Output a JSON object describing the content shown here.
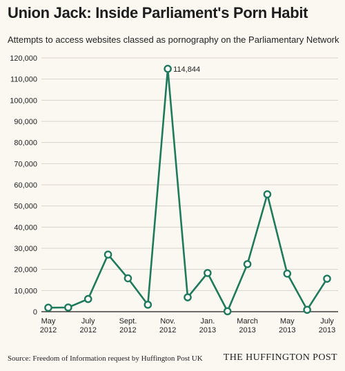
{
  "header": {
    "title": "Union Jack: Inside Parliament's Porn Habit",
    "subtitle": "Attempts to access websites classed as pornography on the Parliamentary Network"
  },
  "footer": {
    "source": "Source: Freedom of Information request by Huffington Post UK",
    "brand": "THE HUFFINGTON POST"
  },
  "colors": {
    "line": "#1e7a5c",
    "marker_fill": "#ffffff",
    "grid": "#d9d5cc",
    "axis": "#1a1a1a",
    "background": "#fbf8f2"
  },
  "chart_data": {
    "type": "line",
    "title": "Union Jack: Inside Parliament's Porn Habit",
    "subtitle": "Attempts to access websites classed as pornography on the Parliamentary Network",
    "xlabel": "",
    "ylabel": "",
    "ylim": [
      0,
      120000
    ],
    "y_ticks": [
      0,
      10000,
      20000,
      30000,
      40000,
      50000,
      60000,
      70000,
      80000,
      90000,
      100000,
      110000,
      120000
    ],
    "grid": true,
    "legend": "none",
    "categories": [
      "May 2012",
      "Jun 2012",
      "Jul 2012",
      "Aug 2012",
      "Sep 2012",
      "Oct 2012",
      "Nov 2012",
      "Dec 2012",
      "Jan 2013",
      "Feb 2013",
      "Mar 2013",
      "Apr 2013",
      "May 2013",
      "Jun 2013",
      "Jul 2013"
    ],
    "x_tick_labels": [
      {
        "index": 0,
        "lines": [
          "May",
          "2012"
        ]
      },
      {
        "index": 2,
        "lines": [
          "July",
          "2012"
        ]
      },
      {
        "index": 4,
        "lines": [
          "Sept.",
          "2012"
        ]
      },
      {
        "index": 6,
        "lines": [
          "Nov.",
          "2012"
        ]
      },
      {
        "index": 8,
        "lines": [
          "Jan.",
          "2013"
        ]
      },
      {
        "index": 10,
        "lines": [
          "March",
          "2013"
        ]
      },
      {
        "index": 12,
        "lines": [
          "May",
          "2013"
        ]
      },
      {
        "index": 14,
        "lines": [
          "July",
          "2013"
        ]
      }
    ],
    "series": [
      {
        "values": [
          1900,
          2000,
          6000,
          27000,
          15800,
          3300,
          114844,
          6800,
          18300,
          200,
          22500,
          55500,
          18000,
          900,
          15600
        ]
      }
    ],
    "annotations": [
      {
        "index": 6,
        "text": "114,844"
      }
    ]
  }
}
